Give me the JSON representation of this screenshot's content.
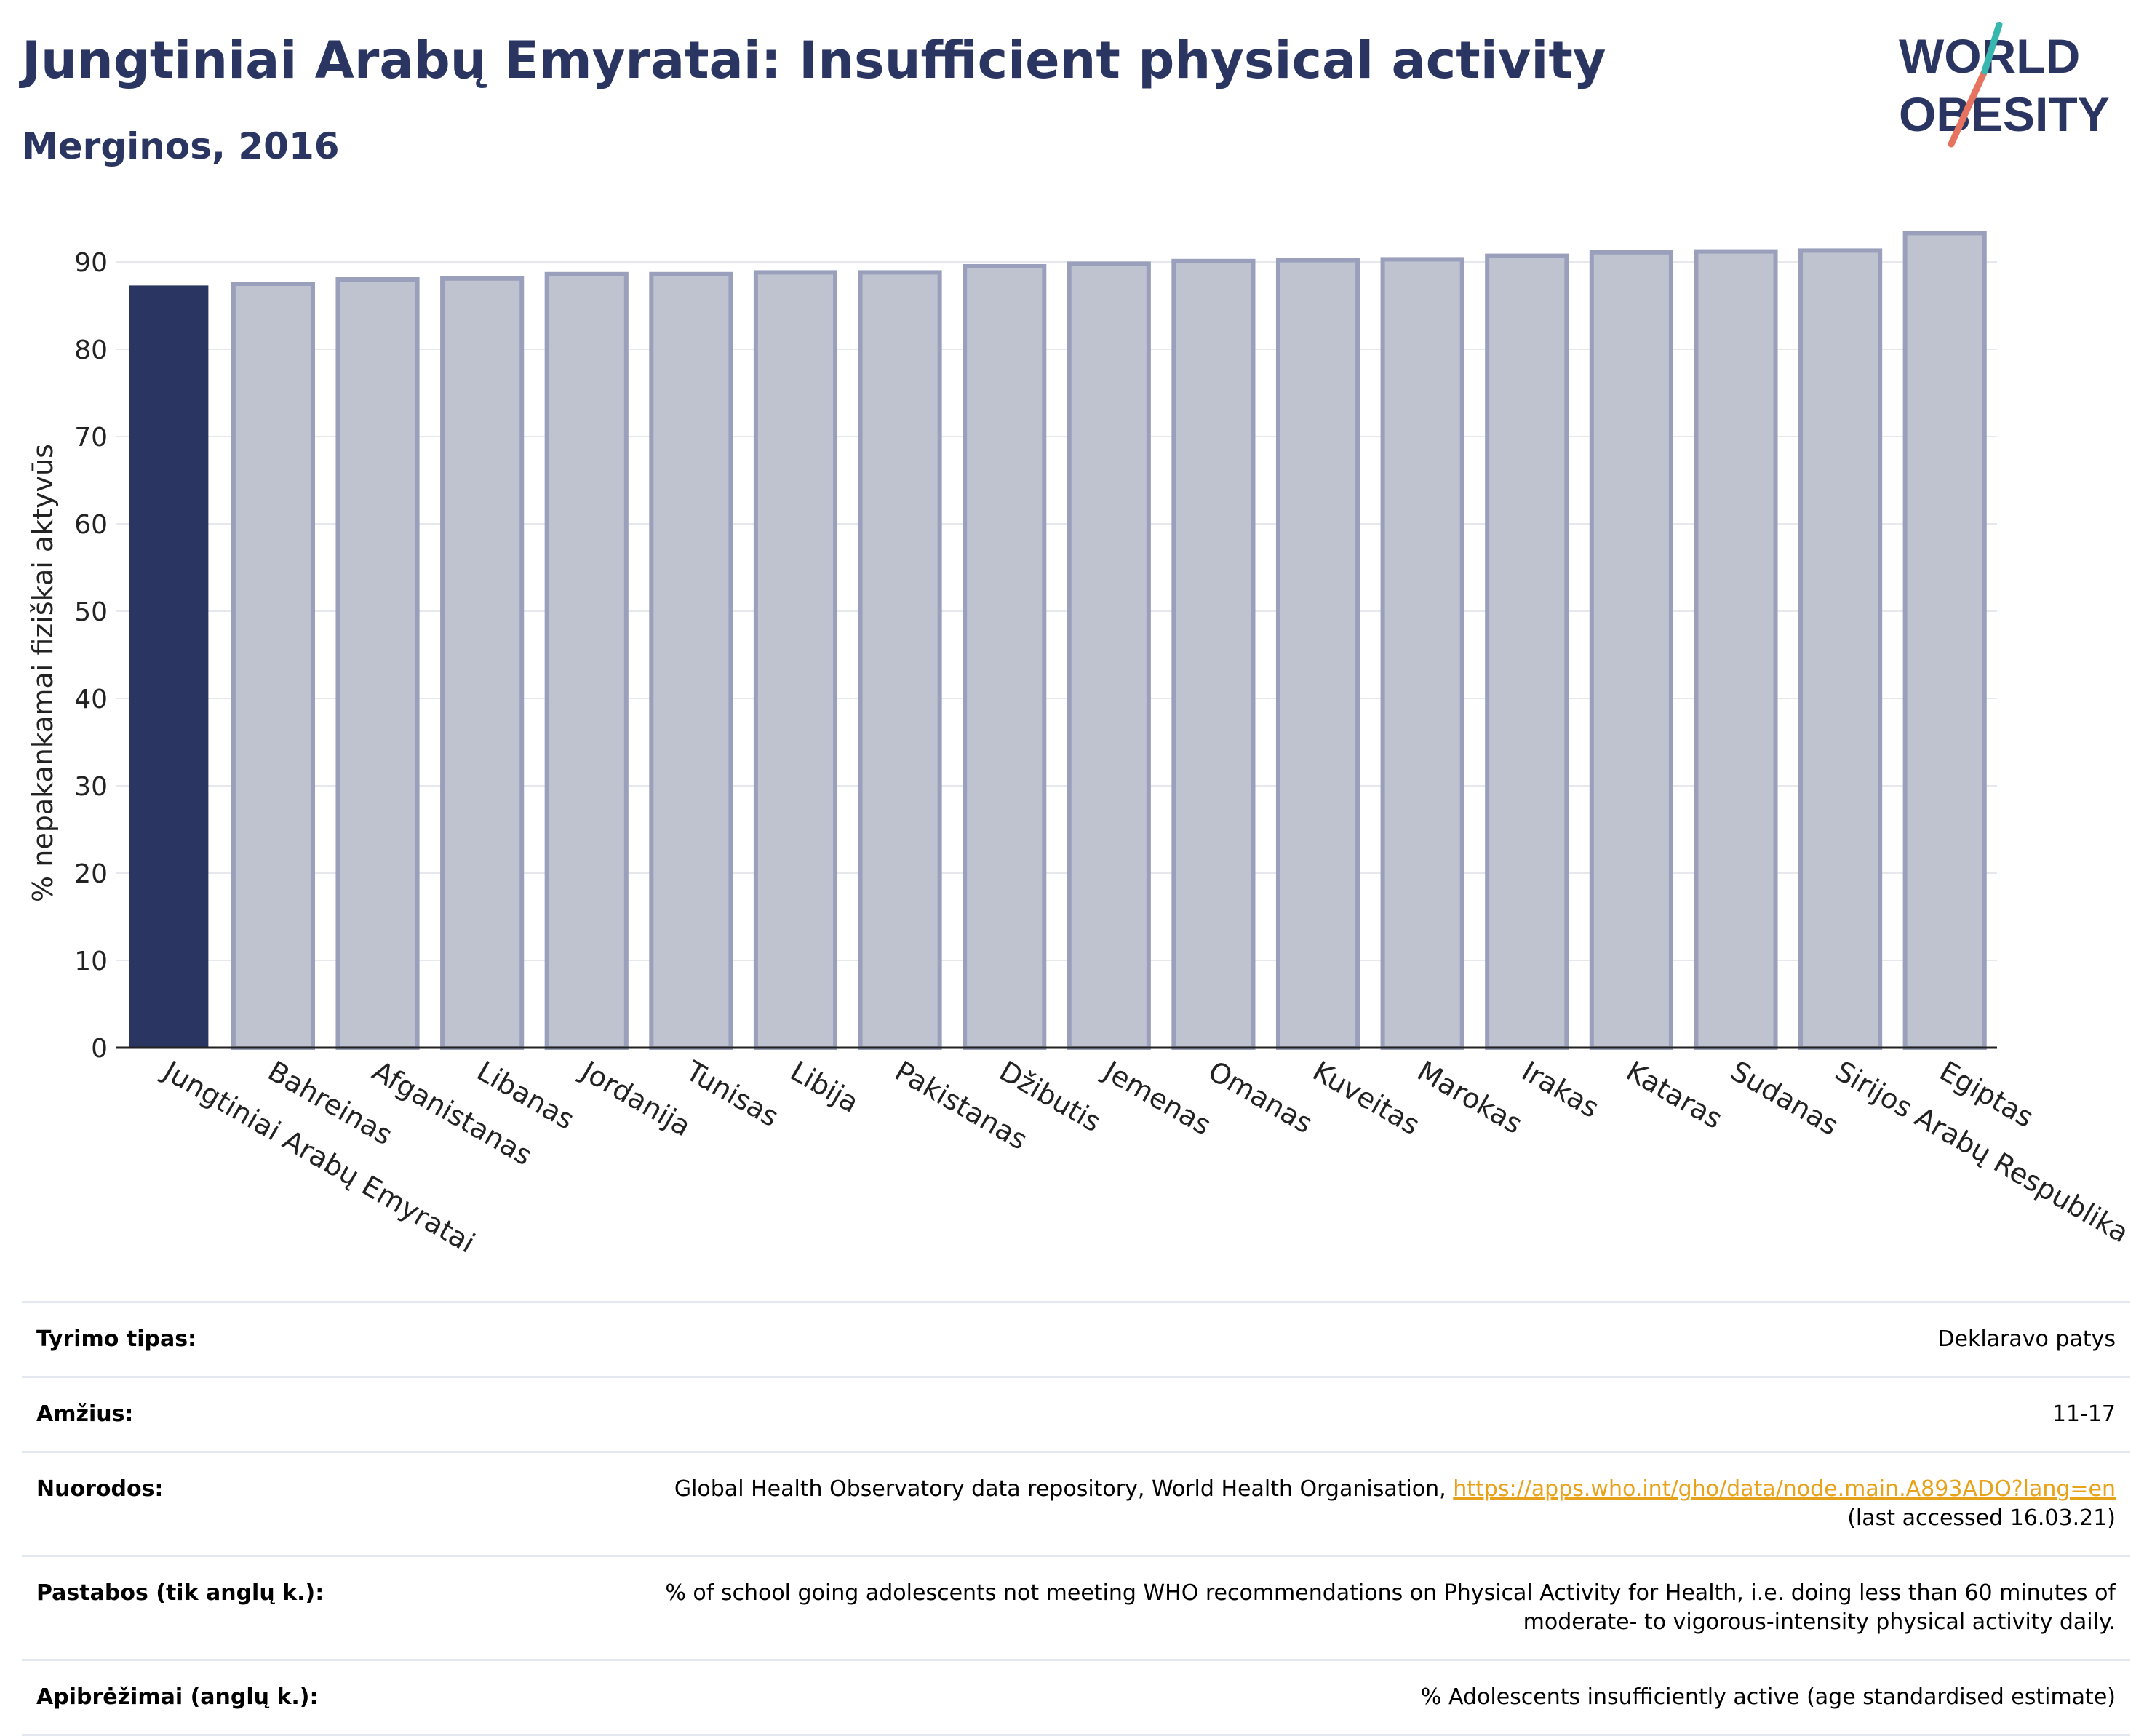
{
  "title": "Jungtiniai Arabų Emyratai: Insufficient physical activity",
  "subtitle": "Merginos, 2016",
  "logo": {
    "line1": "WORLD",
    "line2": "OBESITY"
  },
  "colors": {
    "highlight": "#2b3561",
    "bar_fill": "#bfc2cf",
    "bar_stroke": "#9aa0bb",
    "text_dark": "#2b3561",
    "link": "#e8a21a"
  },
  "chart_data": {
    "type": "bar",
    "ylabel": "% nepakankamai fiziškai aktyvūs",
    "ylim": [
      0,
      95
    ],
    "yticks": [
      0,
      10,
      20,
      30,
      40,
      50,
      60,
      70,
      80,
      90
    ],
    "grid": true,
    "highlight_index": 0,
    "categories": [
      "Jungtiniai Arabų Emyratai",
      "Bahreinas",
      "Afganistanas",
      "Libanas",
      "Jordanija",
      "Tunisas",
      "Libija",
      "Pakistanas",
      "Džibutis",
      "Jemenas",
      "Omanas",
      "Kuveitas",
      "Marokas",
      "Irakas",
      "Kataras",
      "Sudanas",
      "Sirijos Arabų Respublika",
      "Egiptas"
    ],
    "values": [
      87.3,
      87.5,
      88.0,
      88.1,
      88.6,
      88.6,
      88.8,
      88.8,
      89.5,
      89.8,
      90.1,
      90.2,
      90.3,
      90.7,
      91.1,
      91.2,
      91.3,
      93.3
    ]
  },
  "info": {
    "survey_type": {
      "label": "Tyrimo tipas:",
      "value": "Deklaravo patys"
    },
    "age": {
      "label": "Amžius:",
      "value": "11-17"
    },
    "references": {
      "label": "Nuorodos:",
      "text": "Global Health Observatory data repository, World Health Organisation,",
      "url": "https://apps.who.int/gho/data/node.main.A893ADO?lang=en",
      "accessed": "(last accessed 16.03.21)"
    },
    "notes": {
      "label": "Pastabos (tik anglų k.):",
      "value": "% of school going adolescents not meeting WHO recommendations on Physical Activity for Health, i.e. doing less than 60 minutes of moderate- to vigorous-intensity physical activity daily."
    },
    "definitions": {
      "label": "Apibrėžimai (anglų k.):",
      "value": "% Adolescents insufficiently active (age standardised estimate)"
    }
  }
}
